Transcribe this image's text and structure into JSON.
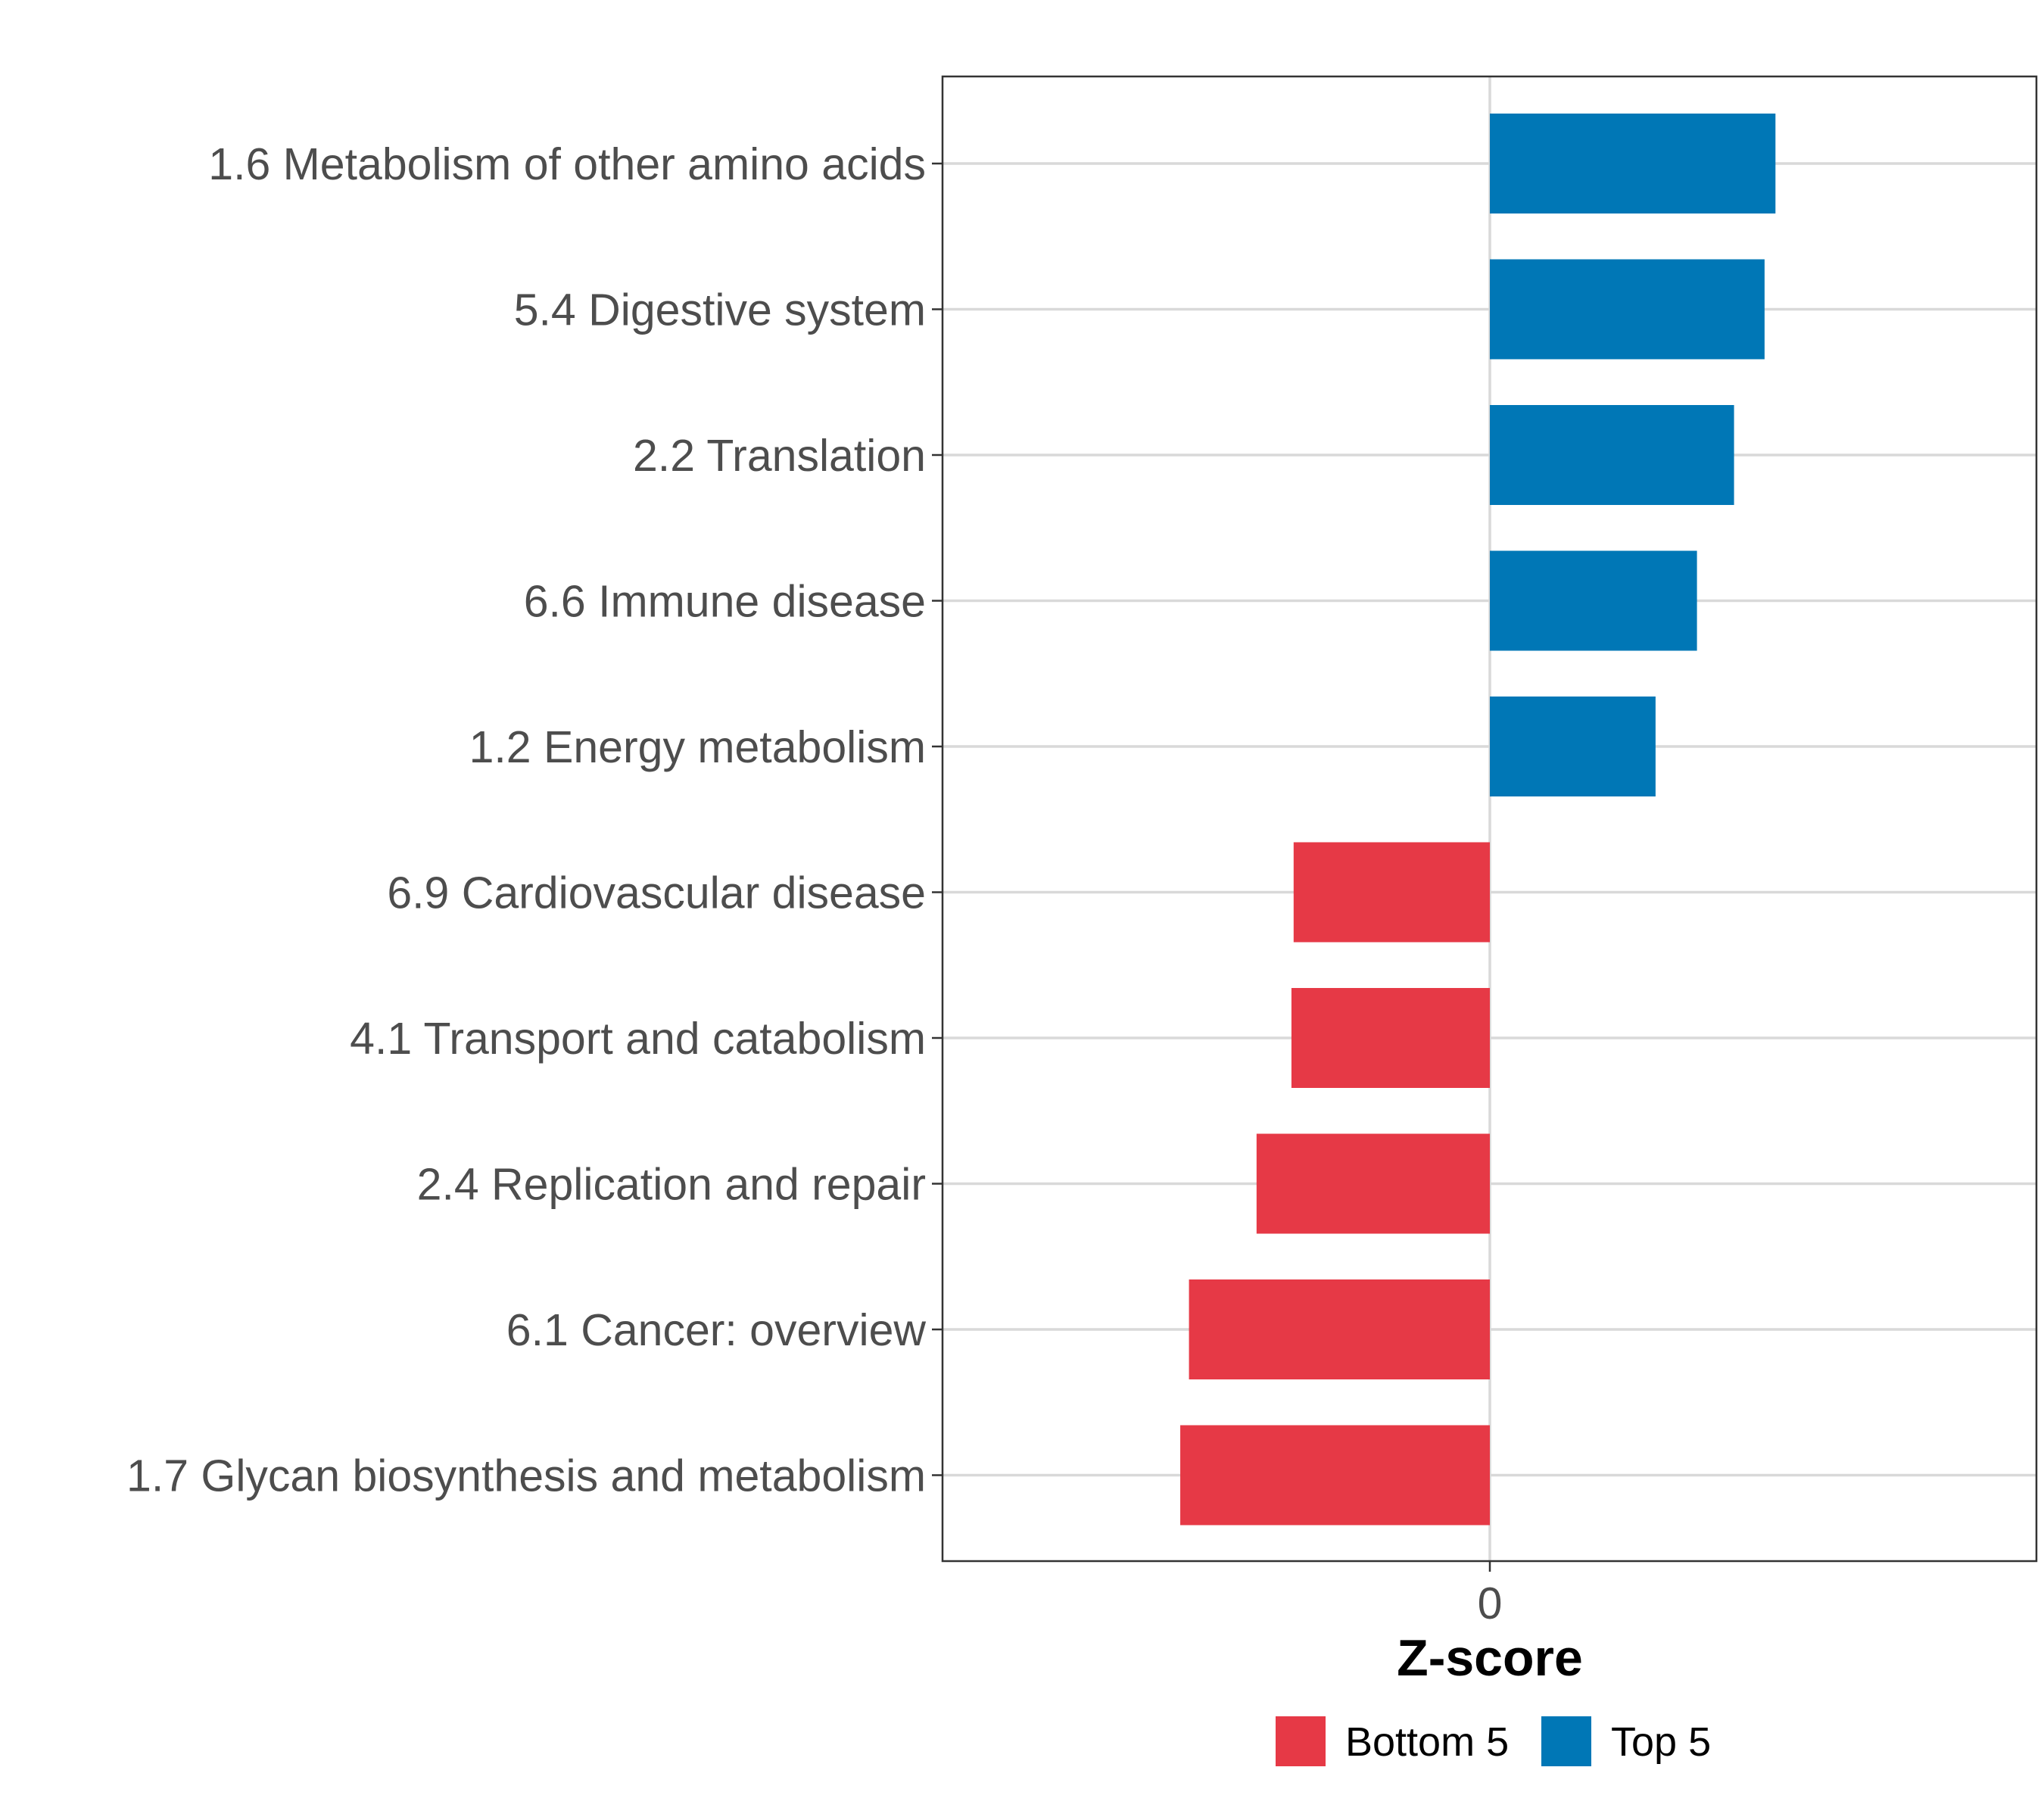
{
  "chart_data": {
    "type": "bar",
    "orientation": "horizontal",
    "title": "",
    "xlabel": "Z-score",
    "ylabel": "",
    "xlim": [
      -2.5,
      2.5
    ],
    "x_ticks": [
      0
    ],
    "x_tick_labels": [
      "0"
    ],
    "grid": true,
    "legend_position": "bottom",
    "categories": [
      "1.6 Metabolism of other amino acids",
      "5.4 Digestive system",
      "2.2 Translation",
      "6.6 Immune disease",
      "1.2 Energy metabolism",
      "6.9 Cardiovascular disease",
      "4.1 Transport and catabolism",
      "2.4 Replication and repair",
      "6.1 Cancer: overview",
      "1.7 Glycan biosynthesis and metabolism"
    ],
    "values": [
      1.31,
      1.26,
      1.12,
      0.95,
      0.76,
      -0.9,
      -0.91,
      -1.07,
      -1.38,
      -1.42
    ],
    "groups": [
      "Top 5",
      "Top 5",
      "Top 5",
      "Top 5",
      "Top 5",
      "Bottom 5",
      "Bottom 5",
      "Bottom 5",
      "Bottom 5",
      "Bottom 5"
    ],
    "legend": [
      {
        "name": "Bottom 5",
        "color": "#E63946"
      },
      {
        "name": "Top 5",
        "color": "#0077B6"
      }
    ]
  }
}
